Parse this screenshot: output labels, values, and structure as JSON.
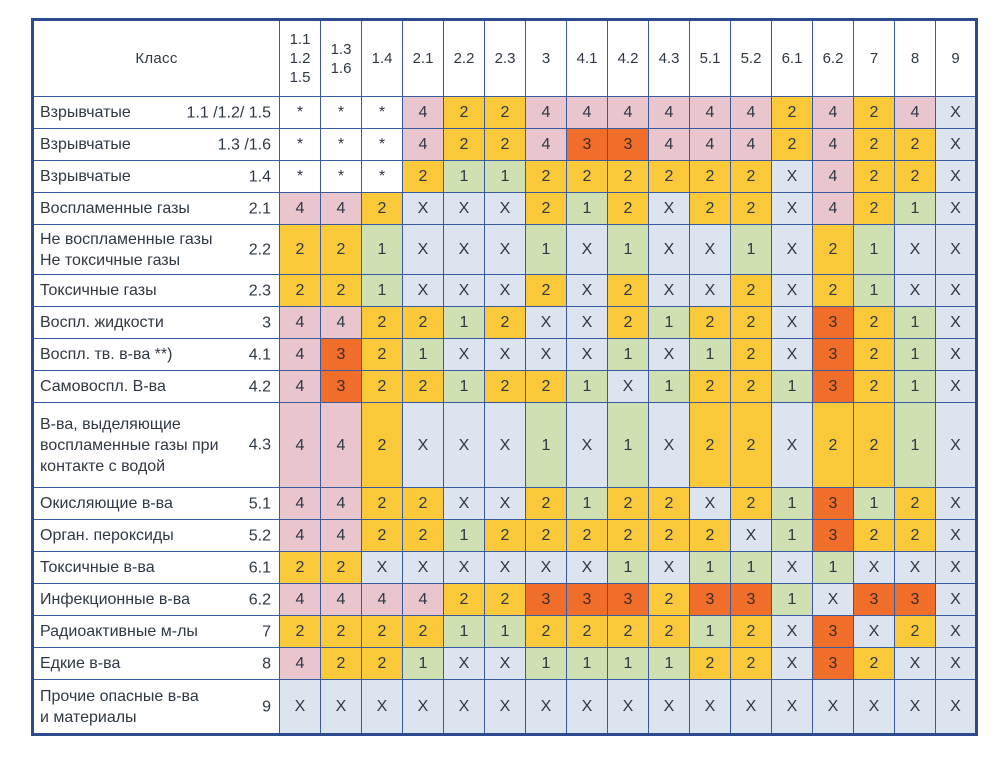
{
  "header": {
    "class_label": "Класс"
  },
  "columns": [
    "1.1\n1.2\n1.5",
    "1.3\n1.6",
    "1.4",
    "2.1",
    "2.2",
    "2.3",
    "3",
    "4.1",
    "4.2",
    "4.3",
    "5.1",
    "5.2",
    "6.1",
    "6.2",
    "7",
    "8",
    "9"
  ],
  "colors": {
    "4": "#e9c6cd",
    "3": "#f06e2a",
    "2": "#f9c93a",
    "1": "#cfe1b2",
    "X": "#dce4f0",
    "*": "#ffffff"
  },
  "rows": [
    {
      "name": "Взрывчатые",
      "num": "1.1 /1.2/ 1.5",
      "cells": [
        "*",
        "*",
        "*",
        "4",
        "2",
        "2",
        "4",
        "4",
        "4",
        "4",
        "4",
        "4",
        "2",
        "4",
        "2",
        "4",
        "X"
      ]
    },
    {
      "name": "Взрывчатые",
      "num": "1.3 /1.6",
      "cells": [
        "*",
        "*",
        "*",
        "4",
        "2",
        "2",
        "4",
        "3",
        "3",
        "4",
        "4",
        "4",
        "2",
        "4",
        "2",
        "2",
        "X"
      ]
    },
    {
      "name": "Взрывчатые",
      "num": "1.4",
      "cells": [
        "*",
        "*",
        "*",
        "2",
        "1",
        "1",
        "2",
        "2",
        "2",
        "2",
        "2",
        "2",
        "X",
        "4",
        "2",
        "2",
        "X"
      ]
    },
    {
      "name": "Воспламенные газы",
      "num": "2.1",
      "cells": [
        "4",
        "4",
        "2",
        "X",
        "X",
        "X",
        "2",
        "1",
        "2",
        "X",
        "2",
        "2",
        "X",
        "4",
        "2",
        "1",
        "X"
      ]
    },
    {
      "name": "Не воспламенные газы\nНе токсичные газы",
      "num": "2.2",
      "cells": [
        "2",
        "2",
        "1",
        "X",
        "X",
        "X",
        "1",
        "X",
        "1",
        "X",
        "X",
        "1",
        "X",
        "2",
        "1",
        "X",
        "X"
      ]
    },
    {
      "name": "Токсичные газы",
      "num": "2.3",
      "cells": [
        "2",
        "2",
        "1",
        "X",
        "X",
        "X",
        "2",
        "X",
        "2",
        "X",
        "X",
        "2",
        "X",
        "2",
        "1",
        "X",
        "X"
      ]
    },
    {
      "name": "Воспл. жидкости",
      "num": "3",
      "cells": [
        "4",
        "4",
        "2",
        "2",
        "1",
        "2",
        "X",
        "X",
        "2",
        "1",
        "2",
        "2",
        "X",
        "3",
        "2",
        "1",
        "X"
      ]
    },
    {
      "name": "Воспл. тв. в-ва **)",
      "num": "4.1",
      "cells": [
        "4",
        "3",
        "2",
        "1",
        "X",
        "X",
        "X",
        "X",
        "1",
        "X",
        "1",
        "2",
        "X",
        "3",
        "2",
        "1",
        "X"
      ]
    },
    {
      "name": "Самовоспл. В-ва",
      "num": "4.2",
      "cells": [
        "4",
        "3",
        "2",
        "2",
        "1",
        "2",
        "2",
        "1",
        "X",
        "1",
        "2",
        "2",
        "1",
        "3",
        "2",
        "1",
        "X"
      ]
    },
    {
      "name": "В-ва, выделяющие\nвоспламенные газы при\nконтакте с водой",
      "num": "4.3",
      "cells": [
        "4",
        "4",
        "2",
        "X",
        "X",
        "X",
        "1",
        "X",
        "1",
        "X",
        "2",
        "2",
        "X",
        "2",
        "2",
        "1",
        "X"
      ]
    },
    {
      "name": "Окисляющие в-ва",
      "num": "5.1",
      "cells": [
        "4",
        "4",
        "2",
        "2",
        "X",
        "X",
        "2",
        "1",
        "2",
        "2",
        "X",
        "2",
        "1",
        "3",
        "1",
        "2",
        "X"
      ]
    },
    {
      "name": "Орган. пероксиды",
      "num": "5.2",
      "cells": [
        "4",
        "4",
        "2",
        "2",
        "1",
        "2",
        "2",
        "2",
        "2",
        "2",
        "2",
        "X",
        "1",
        "3",
        "2",
        "2",
        "X"
      ]
    },
    {
      "name": "Токсичные в-ва",
      "num": "6.1",
      "cells": [
        "2",
        "2",
        "X",
        "X",
        "X",
        "X",
        "X",
        "X",
        "1",
        "X",
        "1",
        "1",
        "X",
        "1",
        "X",
        "X",
        "X"
      ]
    },
    {
      "name": "Инфекционные в-ва",
      "num": "6.2",
      "cells": [
        "4",
        "4",
        "4",
        "4",
        "2",
        "2",
        "3",
        "3",
        "3",
        "2",
        "3",
        "3",
        "1",
        "X",
        "3",
        "3",
        "X"
      ]
    },
    {
      "name": "Радиоактивные м-лы",
      "num": "7",
      "cells": [
        "2",
        "2",
        "2",
        "2",
        "1",
        "1",
        "2",
        "2",
        "2",
        "2",
        "1",
        "2",
        "X",
        "3",
        "X",
        "2",
        "X"
      ]
    },
    {
      "name": "Едкие в-ва",
      "num": "8",
      "cells": [
        "4",
        "2",
        "2",
        "1",
        "X",
        "X",
        "1",
        "1",
        "1",
        "1",
        "2",
        "2",
        "X",
        "3",
        "2",
        "X",
        "X"
      ]
    },
    {
      "name": "Прочие опасные в-ва\nи материалы",
      "num": "9",
      "cells": [
        "X",
        "X",
        "X",
        "X",
        "X",
        "X",
        "X",
        "X",
        "X",
        "X",
        "X",
        "X",
        "X",
        "X",
        "X",
        "X",
        "X"
      ]
    }
  ]
}
